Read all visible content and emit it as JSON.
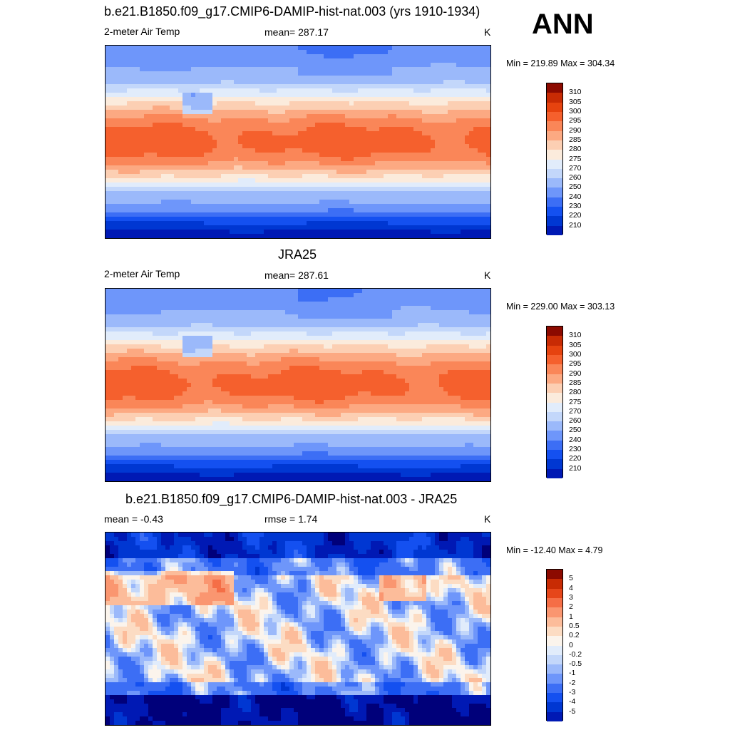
{
  "header": {
    "season": "ANN"
  },
  "colors": {
    "abs_scale": [
      "#00007a",
      "#0019b4",
      "#0037d2",
      "#1450f0",
      "#3c6ef5",
      "#6e96fa",
      "#9bb9fa",
      "#c3d7fa",
      "#e1ecfb",
      "#fbebdc",
      "#fccfb3",
      "#fca982",
      "#fa8658",
      "#f5602d",
      "#e6430f",
      "#c82b04",
      "#8c0a00"
    ],
    "diff_scale": [
      "#00007a",
      "#0019b4",
      "#0037d2",
      "#1450f0",
      "#3c6ef5",
      "#6e96fa",
      "#9bb9fa",
      "#c3d7fa",
      "#e1ecfb",
      "#fbf4ec",
      "#fcdcc3",
      "#fcbc9a",
      "#fa9670",
      "#f56e46",
      "#e6461a",
      "#c82b04",
      "#8c0a00"
    ]
  },
  "panels": [
    {
      "id": "model",
      "title": "b.e21.B1850.f09_g17.CMIP6-DAMIP-hist-nat.003 (yrs 1910-1934)",
      "left_label": "2-meter Air Temp",
      "center_label": "mean= 287.17",
      "unit": "K",
      "minmax": "Min = 219.89 Max = 304.34"
    },
    {
      "id": "obs",
      "title": "JRA25",
      "left_label": "2-meter Air Temp",
      "center_label": "mean= 287.61",
      "unit": "K",
      "minmax": "Min = 229.00 Max = 303.13"
    },
    {
      "id": "diff",
      "title": "b.e21.B1850.f09_g17.CMIP6-DAMIP-hist-nat.003 - JRA25",
      "left_label": "mean =  -0.43",
      "center_label": "rmse =   1.74",
      "unit": "K",
      "minmax": "Min = -12.40 Max =   4.79"
    }
  ],
  "chart_data": [
    {
      "type": "heatmap",
      "title": "b.e21.B1850.f09_g17.CMIP6-DAMIP-hist-nat.003 (yrs 1910-1934)",
      "variable": "2-meter Air Temp",
      "unit": "K",
      "mean": 287.17,
      "min": 219.89,
      "max": 304.34,
      "colorbar_levels": [
        210,
        220,
        230,
        240,
        250,
        260,
        270,
        275,
        280,
        285,
        290,
        295,
        300,
        305,
        310
      ],
      "colorbar_tick_labels": [
        "310",
        "305",
        "300",
        "295",
        "290",
        "285",
        "280",
        "275",
        "270",
        "260",
        "250",
        "240",
        "230",
        "220",
        "210"
      ]
    },
    {
      "type": "heatmap",
      "title": "JRA25",
      "variable": "2-meter Air Temp",
      "unit": "K",
      "mean": 287.61,
      "min": 229.0,
      "max": 303.13,
      "colorbar_levels": [
        210,
        220,
        230,
        240,
        250,
        260,
        270,
        275,
        280,
        285,
        290,
        295,
        300,
        305,
        310
      ],
      "colorbar_tick_labels": [
        "310",
        "305",
        "300",
        "295",
        "290",
        "285",
        "280",
        "275",
        "270",
        "260",
        "250",
        "240",
        "230",
        "220",
        "210"
      ]
    },
    {
      "type": "heatmap",
      "title": "b.e21.B1850.f09_g17.CMIP6-DAMIP-hist-nat.003 - JRA25",
      "unit": "K",
      "mean": -0.43,
      "rmse": 1.74,
      "min": -12.4,
      "max": 4.79,
      "colorbar_levels": [
        -5,
        -4,
        -3,
        -2,
        -1,
        -0.5,
        -0.2,
        0,
        0.2,
        0.5,
        1,
        2,
        3,
        4,
        5
      ],
      "colorbar_tick_labels": [
        "5",
        "4",
        "3",
        "2",
        "1",
        "0.5",
        "0.2",
        "0",
        "-0.2",
        "-0.5",
        "-1",
        "-2",
        "-3",
        "-4",
        "-5"
      ]
    }
  ]
}
